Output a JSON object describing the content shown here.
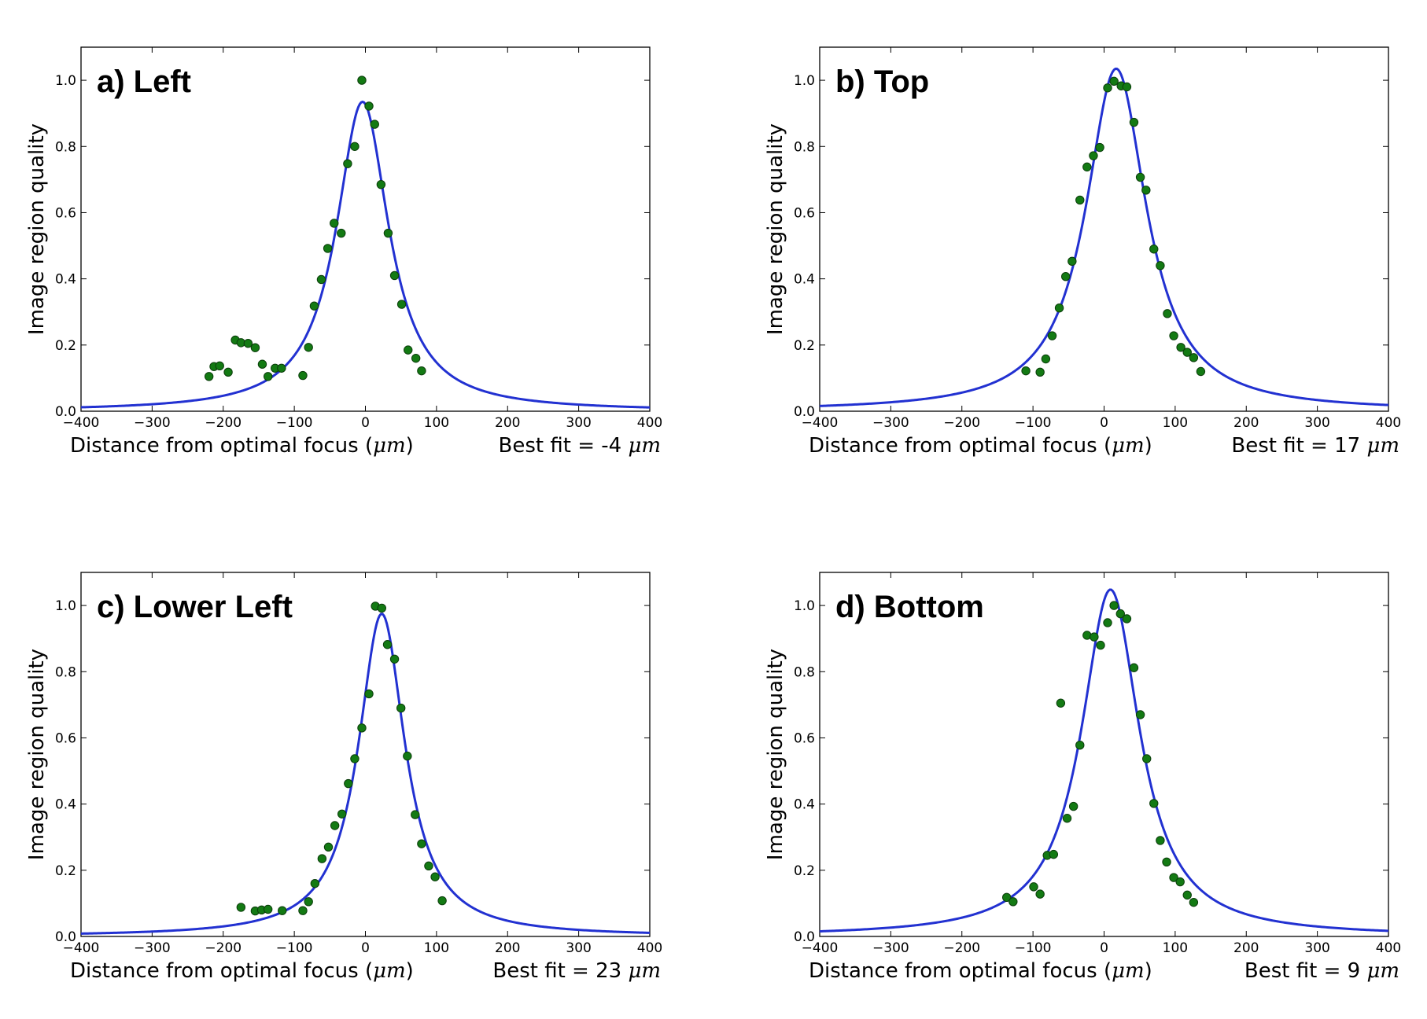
{
  "figure": {
    "background": "#ffffff"
  },
  "style": {
    "line_color": "#2231d1",
    "marker_color": "#137a13",
    "marker_edge": "#0b3d0b"
  },
  "chart_data": [
    {
      "type": "scatter",
      "title": "a) Left",
      "xlabel": "Distance from optimal focus",
      "xlabel_unit": "μm",
      "best_fit_label": "Best fit = -4",
      "best_fit_unit": "μm",
      "ylabel": "Image region quality",
      "xlim": [
        -400,
        400
      ],
      "ylim": [
        0,
        1.1
      ],
      "xticks": [
        -400,
        -300,
        -200,
        -100,
        0,
        100,
        200,
        300,
        400
      ],
      "xtick_labels": [
        "−400",
        "−300",
        "−200",
        "−100",
        "0",
        "100",
        "200",
        "300",
        "400"
      ],
      "yticks": [
        0,
        0.2,
        0.4,
        0.6,
        0.8,
        1.0
      ],
      "ytick_labels": [
        "0.0",
        "0.2",
        "0.4",
        "0.6",
        "0.8",
        "1.0"
      ],
      "fit": {
        "type": "lorentzian",
        "center": -4,
        "peak": 0.935,
        "hwhm": 45
      },
      "points": [
        [
          -220,
          0.105
        ],
        [
          -213,
          0.135
        ],
        [
          -205,
          0.137
        ],
        [
          -193,
          0.118
        ],
        [
          -183,
          0.215
        ],
        [
          -175,
          0.207
        ],
        [
          -165,
          0.205
        ],
        [
          -155,
          0.192
        ],
        [
          -145,
          0.142
        ],
        [
          -137,
          0.105
        ],
        [
          -127,
          0.13
        ],
        [
          -118,
          0.13
        ],
        [
          -88,
          0.108
        ],
        [
          -80,
          0.193
        ],
        [
          -72,
          0.318
        ],
        [
          -62,
          0.398
        ],
        [
          -53,
          0.492
        ],
        [
          -44,
          0.568
        ],
        [
          -34,
          0.538
        ],
        [
          -25,
          0.748
        ],
        [
          -15,
          0.8
        ],
        [
          -5,
          1.0
        ],
        [
          5,
          0.922
        ],
        [
          13,
          0.867
        ],
        [
          22,
          0.685
        ],
        [
          32,
          0.538
        ],
        [
          41,
          0.41
        ],
        [
          51,
          0.323
        ],
        [
          60,
          0.185
        ],
        [
          71,
          0.16
        ],
        [
          79,
          0.122
        ]
      ]
    },
    {
      "type": "scatter",
      "title": "b) Top",
      "xlabel": "Distance from optimal focus",
      "xlabel_unit": "μm",
      "best_fit_label": "Best fit = 17",
      "best_fit_unit": "μm",
      "ylabel": "Image region quality",
      "xlim": [
        -400,
        400
      ],
      "ylim": [
        0,
        1.1
      ],
      "xticks": [
        -400,
        -300,
        -200,
        -100,
        0,
        100,
        200,
        300,
        400
      ],
      "xtick_labels": [
        "−400",
        "−300",
        "−200",
        "−100",
        "0",
        "100",
        "200",
        "300",
        "400"
      ],
      "yticks": [
        0,
        0.2,
        0.4,
        0.6,
        0.8,
        1.0
      ],
      "ytick_labels": [
        "0.0",
        "0.2",
        "0.4",
        "0.6",
        "0.8",
        "1.0"
      ],
      "fit": {
        "type": "lorentzian",
        "center": 17,
        "peak": 1.035,
        "hwhm": 52
      },
      "points": [
        [
          -110,
          0.122
        ],
        [
          -90,
          0.118
        ],
        [
          -82,
          0.158
        ],
        [
          -73,
          0.228
        ],
        [
          -63,
          0.312
        ],
        [
          -54,
          0.407
        ],
        [
          -45,
          0.453
        ],
        [
          -34,
          0.638
        ],
        [
          -24,
          0.738
        ],
        [
          -15,
          0.772
        ],
        [
          -6,
          0.797
        ],
        [
          5,
          0.977
        ],
        [
          14,
          0.997
        ],
        [
          24,
          0.983
        ],
        [
          32,
          0.98
        ],
        [
          42,
          0.873
        ],
        [
          51,
          0.707
        ],
        [
          59,
          0.668
        ],
        [
          70,
          0.49
        ],
        [
          79,
          0.44
        ],
        [
          89,
          0.295
        ],
        [
          98,
          0.228
        ],
        [
          108,
          0.193
        ],
        [
          117,
          0.178
        ],
        [
          126,
          0.162
        ],
        [
          136,
          0.12
        ]
      ]
    },
    {
      "type": "scatter",
      "title": "c) Lower Left",
      "xlabel": "Distance from optimal focus",
      "xlabel_unit": "μm",
      "best_fit_label": "Best fit = 23",
      "best_fit_unit": "μm",
      "ylabel": "Image region quality",
      "xlim": [
        -400,
        400
      ],
      "ylim": [
        0,
        1.1
      ],
      "xticks": [
        -400,
        -300,
        -200,
        -100,
        0,
        100,
        200,
        300,
        400
      ],
      "xtick_labels": [
        "−400",
        "−300",
        "−200",
        "−100",
        "0",
        "100",
        "200",
        "300",
        "400"
      ],
      "yticks": [
        0,
        0.2,
        0.4,
        0.6,
        0.8,
        1.0
      ],
      "ytick_labels": [
        "0.0",
        "0.2",
        "0.4",
        "0.6",
        "0.8",
        "1.0"
      ],
      "fit": {
        "type": "lorentzian",
        "center": 23,
        "peak": 0.975,
        "hwhm": 40
      },
      "points": [
        [
          -175,
          0.088
        ],
        [
          -155,
          0.077
        ],
        [
          -146,
          0.08
        ],
        [
          -137,
          0.082
        ],
        [
          -117,
          0.078
        ],
        [
          -88,
          0.078
        ],
        [
          -80,
          0.105
        ],
        [
          -71,
          0.16
        ],
        [
          -61,
          0.235
        ],
        [
          -52,
          0.27
        ],
        [
          -43,
          0.335
        ],
        [
          -33,
          0.37
        ],
        [
          -24,
          0.462
        ],
        [
          -15,
          0.537
        ],
        [
          -5,
          0.63
        ],
        [
          5,
          0.733
        ],
        [
          14,
          0.998
        ],
        [
          23,
          0.992
        ],
        [
          31,
          0.882
        ],
        [
          41,
          0.838
        ],
        [
          50,
          0.69
        ],
        [
          59,
          0.545
        ],
        [
          70,
          0.368
        ],
        [
          79,
          0.28
        ],
        [
          89,
          0.213
        ],
        [
          98,
          0.18
        ],
        [
          108,
          0.108
        ]
      ]
    },
    {
      "type": "scatter",
      "title": "d) Bottom",
      "xlabel": "Distance from optimal focus",
      "xlabel_unit": "μm",
      "best_fit_label": "Best fit = 9",
      "best_fit_unit": "μm",
      "ylabel": "Image region quality",
      "xlim": [
        -400,
        400
      ],
      "ylim": [
        0,
        1.1
      ],
      "xticks": [
        -400,
        -300,
        -200,
        -100,
        0,
        100,
        200,
        300,
        400
      ],
      "xtick_labels": [
        "−400",
        "−300",
        "−200",
        "−100",
        "0",
        "100",
        "200",
        "300",
        "400"
      ],
      "yticks": [
        0,
        0.2,
        0.4,
        0.6,
        0.8,
        1.0
      ],
      "ytick_labels": [
        "0.0",
        "0.2",
        "0.4",
        "0.6",
        "0.8",
        "1.0"
      ],
      "fit": {
        "type": "lorentzian",
        "center": 9,
        "peak": 1.048,
        "hwhm": 50
      },
      "points": [
        [
          -137,
          0.118
        ],
        [
          -128,
          0.105
        ],
        [
          -99,
          0.15
        ],
        [
          -90,
          0.128
        ],
        [
          -80,
          0.245
        ],
        [
          -71,
          0.248
        ],
        [
          -61,
          0.705
        ],
        [
          -52,
          0.357
        ],
        [
          -43,
          0.393
        ],
        [
          -34,
          0.578
        ],
        [
          -24,
          0.91
        ],
        [
          -14,
          0.905
        ],
        [
          -5,
          0.88
        ],
        [
          5,
          0.948
        ],
        [
          14,
          1.0
        ],
        [
          23,
          0.975
        ],
        [
          32,
          0.96
        ],
        [
          42,
          0.812
        ],
        [
          51,
          0.67
        ],
        [
          60,
          0.537
        ],
        [
          70,
          0.402
        ],
        [
          79,
          0.29
        ],
        [
          88,
          0.225
        ],
        [
          98,
          0.178
        ],
        [
          107,
          0.165
        ],
        [
          117,
          0.125
        ],
        [
          126,
          0.103
        ]
      ]
    }
  ]
}
